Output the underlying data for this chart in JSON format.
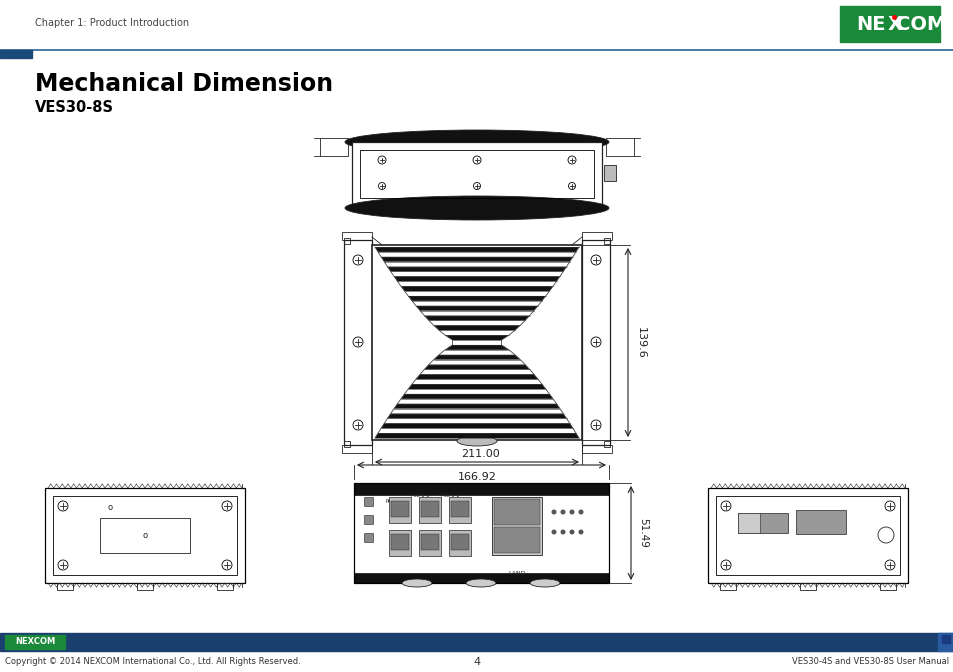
{
  "title": "Mechanical Dimension",
  "subtitle": "VES30-8S",
  "header_text": "Chapter 1: Product Introduction",
  "footer_left": "Copyright © 2014 NEXCOM International Co., Ltd. All Rights Reserved.",
  "footer_center": "4",
  "footer_right": "VES30-4S and VES30-8S User Manual",
  "dim_width": "166.92",
  "dim_height": "139.6",
  "dim_front_width": "211.00",
  "dim_front_height": "51.49",
  "header_line_color": "#2a6496",
  "header_rect_color": "#1a4a7a",
  "footer_bar_color": "#1a3f6f",
  "nexcom_bg": "#1a8a3a",
  "title_color": "#000000",
  "line_color": "#222222",
  "dark_fill": "#111111",
  "mid_fill": "#555555",
  "light_fill": "#aaaaaa",
  "bg_color": "#ffffff"
}
